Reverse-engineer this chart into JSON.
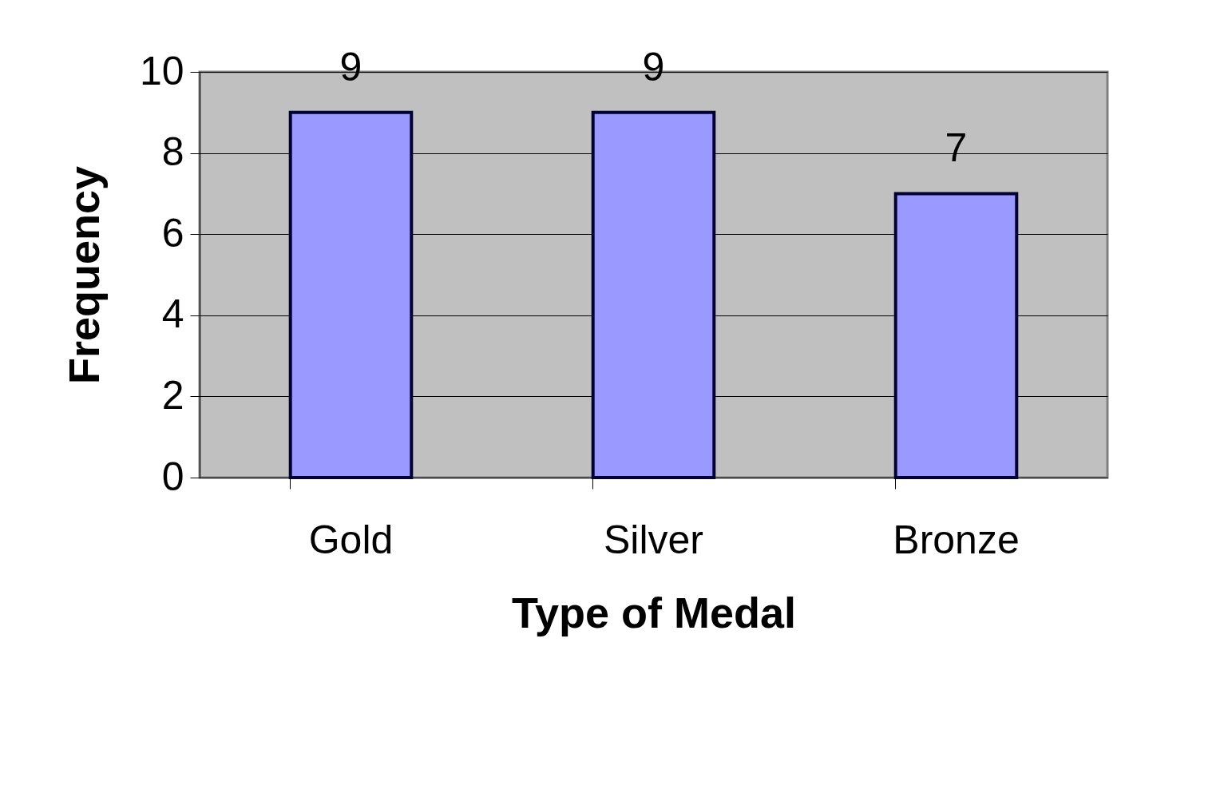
{
  "chart_data": {
    "type": "bar",
    "xlabel": "Type of Medal",
    "ylabel": "Frequency",
    "categories": [
      "Gold",
      "Silver",
      "Bronze"
    ],
    "values": [
      9,
      9,
      7
    ],
    "color": "#9999ff",
    "ylim": [
      0,
      10
    ],
    "yticks": [
      0,
      2,
      4,
      6,
      8,
      10
    ],
    "grid": "y",
    "data_labels": true
  }
}
